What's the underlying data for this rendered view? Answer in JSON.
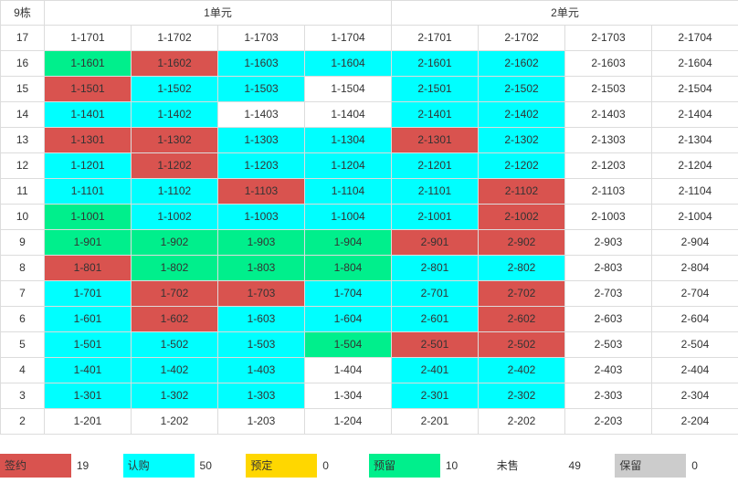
{
  "header": {
    "building": "9栋",
    "units": [
      "1单元",
      "2单元"
    ]
  },
  "status_colors": {
    "signed": "#d9534f",
    "subscribed": "#00ffff",
    "booked": "#ffd700",
    "reserved": "#00ef8c",
    "unsold": "#ffffff",
    "kept": "#cccccc"
  },
  "rows": [
    {
      "floor": "17",
      "cells": [
        {
          "label": "1-1701",
          "status": "unsold"
        },
        {
          "label": "1-1702",
          "status": "unsold"
        },
        {
          "label": "1-1703",
          "status": "unsold"
        },
        {
          "label": "1-1704",
          "status": "unsold"
        },
        {
          "label": "2-1701",
          "status": "unsold"
        },
        {
          "label": "2-1702",
          "status": "unsold"
        },
        {
          "label": "2-1703",
          "status": "unsold"
        },
        {
          "label": "2-1704",
          "status": "unsold"
        }
      ]
    },
    {
      "floor": "16",
      "cells": [
        {
          "label": "1-1601",
          "status": "reserved"
        },
        {
          "label": "1-1602",
          "status": "signed"
        },
        {
          "label": "1-1603",
          "status": "subscribed"
        },
        {
          "label": "1-1604",
          "status": "subscribed"
        },
        {
          "label": "2-1601",
          "status": "subscribed"
        },
        {
          "label": "2-1602",
          "status": "subscribed"
        },
        {
          "label": "2-1603",
          "status": "unsold"
        },
        {
          "label": "2-1604",
          "status": "unsold"
        }
      ]
    },
    {
      "floor": "15",
      "cells": [
        {
          "label": "1-1501",
          "status": "signed"
        },
        {
          "label": "1-1502",
          "status": "subscribed"
        },
        {
          "label": "1-1503",
          "status": "subscribed"
        },
        {
          "label": "1-1504",
          "status": "unsold"
        },
        {
          "label": "2-1501",
          "status": "subscribed"
        },
        {
          "label": "2-1502",
          "status": "subscribed"
        },
        {
          "label": "2-1503",
          "status": "unsold"
        },
        {
          "label": "2-1504",
          "status": "unsold"
        }
      ]
    },
    {
      "floor": "14",
      "cells": [
        {
          "label": "1-1401",
          "status": "subscribed"
        },
        {
          "label": "1-1402",
          "status": "subscribed"
        },
        {
          "label": "1-1403",
          "status": "unsold"
        },
        {
          "label": "1-1404",
          "status": "unsold"
        },
        {
          "label": "2-1401",
          "status": "subscribed"
        },
        {
          "label": "2-1402",
          "status": "subscribed"
        },
        {
          "label": "2-1403",
          "status": "unsold"
        },
        {
          "label": "2-1404",
          "status": "unsold"
        }
      ]
    },
    {
      "floor": "13",
      "cells": [
        {
          "label": "1-1301",
          "status": "signed"
        },
        {
          "label": "1-1302",
          "status": "signed"
        },
        {
          "label": "1-1303",
          "status": "subscribed"
        },
        {
          "label": "1-1304",
          "status": "subscribed"
        },
        {
          "label": "2-1301",
          "status": "signed"
        },
        {
          "label": "2-1302",
          "status": "subscribed"
        },
        {
          "label": "2-1303",
          "status": "unsold"
        },
        {
          "label": "2-1304",
          "status": "unsold"
        }
      ]
    },
    {
      "floor": "12",
      "cells": [
        {
          "label": "1-1201",
          "status": "subscribed"
        },
        {
          "label": "1-1202",
          "status": "signed"
        },
        {
          "label": "1-1203",
          "status": "subscribed"
        },
        {
          "label": "1-1204",
          "status": "subscribed"
        },
        {
          "label": "2-1201",
          "status": "subscribed"
        },
        {
          "label": "2-1202",
          "status": "subscribed"
        },
        {
          "label": "2-1203",
          "status": "unsold"
        },
        {
          "label": "2-1204",
          "status": "unsold"
        }
      ]
    },
    {
      "floor": "11",
      "cells": [
        {
          "label": "1-1101",
          "status": "subscribed"
        },
        {
          "label": "1-1102",
          "status": "subscribed"
        },
        {
          "label": "1-1103",
          "status": "signed"
        },
        {
          "label": "1-1104",
          "status": "subscribed"
        },
        {
          "label": "2-1101",
          "status": "subscribed"
        },
        {
          "label": "2-1102",
          "status": "signed"
        },
        {
          "label": "2-1103",
          "status": "unsold"
        },
        {
          "label": "2-1104",
          "status": "unsold"
        }
      ]
    },
    {
      "floor": "10",
      "cells": [
        {
          "label": "1-1001",
          "status": "reserved"
        },
        {
          "label": "1-1002",
          "status": "subscribed"
        },
        {
          "label": "1-1003",
          "status": "subscribed"
        },
        {
          "label": "1-1004",
          "status": "subscribed"
        },
        {
          "label": "2-1001",
          "status": "subscribed"
        },
        {
          "label": "2-1002",
          "status": "signed"
        },
        {
          "label": "2-1003",
          "status": "unsold"
        },
        {
          "label": "2-1004",
          "status": "unsold"
        }
      ]
    },
    {
      "floor": "9",
      "cells": [
        {
          "label": "1-901",
          "status": "reserved"
        },
        {
          "label": "1-902",
          "status": "reserved"
        },
        {
          "label": "1-903",
          "status": "reserved"
        },
        {
          "label": "1-904",
          "status": "reserved"
        },
        {
          "label": "2-901",
          "status": "signed"
        },
        {
          "label": "2-902",
          "status": "signed"
        },
        {
          "label": "2-903",
          "status": "unsold"
        },
        {
          "label": "2-904",
          "status": "unsold"
        }
      ]
    },
    {
      "floor": "8",
      "cells": [
        {
          "label": "1-801",
          "status": "signed"
        },
        {
          "label": "1-802",
          "status": "reserved"
        },
        {
          "label": "1-803",
          "status": "reserved"
        },
        {
          "label": "1-804",
          "status": "reserved"
        },
        {
          "label": "2-801",
          "status": "subscribed"
        },
        {
          "label": "2-802",
          "status": "subscribed"
        },
        {
          "label": "2-803",
          "status": "unsold"
        },
        {
          "label": "2-804",
          "status": "unsold"
        }
      ]
    },
    {
      "floor": "7",
      "cells": [
        {
          "label": "1-701",
          "status": "subscribed"
        },
        {
          "label": "1-702",
          "status": "signed"
        },
        {
          "label": "1-703",
          "status": "signed"
        },
        {
          "label": "1-704",
          "status": "subscribed"
        },
        {
          "label": "2-701",
          "status": "subscribed"
        },
        {
          "label": "2-702",
          "status": "signed"
        },
        {
          "label": "2-703",
          "status": "unsold"
        },
        {
          "label": "2-704",
          "status": "unsold"
        }
      ]
    },
    {
      "floor": "6",
      "cells": [
        {
          "label": "1-601",
          "status": "subscribed"
        },
        {
          "label": "1-602",
          "status": "signed"
        },
        {
          "label": "1-603",
          "status": "subscribed"
        },
        {
          "label": "1-604",
          "status": "subscribed"
        },
        {
          "label": "2-601",
          "status": "subscribed"
        },
        {
          "label": "2-602",
          "status": "signed"
        },
        {
          "label": "2-603",
          "status": "unsold"
        },
        {
          "label": "2-604",
          "status": "unsold"
        }
      ]
    },
    {
      "floor": "5",
      "cells": [
        {
          "label": "1-501",
          "status": "subscribed"
        },
        {
          "label": "1-502",
          "status": "subscribed"
        },
        {
          "label": "1-503",
          "status": "subscribed"
        },
        {
          "label": "1-504",
          "status": "reserved"
        },
        {
          "label": "2-501",
          "status": "signed"
        },
        {
          "label": "2-502",
          "status": "signed"
        },
        {
          "label": "2-503",
          "status": "unsold"
        },
        {
          "label": "2-504",
          "status": "unsold"
        }
      ]
    },
    {
      "floor": "4",
      "cells": [
        {
          "label": "1-401",
          "status": "subscribed"
        },
        {
          "label": "1-402",
          "status": "subscribed"
        },
        {
          "label": "1-403",
          "status": "subscribed"
        },
        {
          "label": "1-404",
          "status": "unsold"
        },
        {
          "label": "2-401",
          "status": "subscribed"
        },
        {
          "label": "2-402",
          "status": "subscribed"
        },
        {
          "label": "2-403",
          "status": "unsold"
        },
        {
          "label": "2-404",
          "status": "unsold"
        }
      ]
    },
    {
      "floor": "3",
      "cells": [
        {
          "label": "1-301",
          "status": "subscribed"
        },
        {
          "label": "1-302",
          "status": "subscribed"
        },
        {
          "label": "1-303",
          "status": "subscribed"
        },
        {
          "label": "1-304",
          "status": "unsold"
        },
        {
          "label": "2-301",
          "status": "subscribed"
        },
        {
          "label": "2-302",
          "status": "subscribed"
        },
        {
          "label": "2-303",
          "status": "unsold"
        },
        {
          "label": "2-304",
          "status": "unsold"
        }
      ]
    },
    {
      "floor": "2",
      "cells": [
        {
          "label": "1-201",
          "status": "unsold"
        },
        {
          "label": "1-202",
          "status": "unsold"
        },
        {
          "label": "1-203",
          "status": "unsold"
        },
        {
          "label": "1-204",
          "status": "unsold"
        },
        {
          "label": "2-201",
          "status": "unsold"
        },
        {
          "label": "2-202",
          "status": "unsold"
        },
        {
          "label": "2-203",
          "status": "unsold"
        },
        {
          "label": "2-204",
          "status": "unsold"
        }
      ]
    }
  ],
  "legend": [
    {
      "key": "signed",
      "label": "签约",
      "count": "19"
    },
    {
      "key": "subscribed",
      "label": "认购",
      "count": "50"
    },
    {
      "key": "booked",
      "label": "预定",
      "count": "0"
    },
    {
      "key": "reserved",
      "label": "预留",
      "count": "10"
    },
    {
      "key": "unsold",
      "label": "未售",
      "count": "49"
    },
    {
      "key": "kept",
      "label": "保留",
      "count": "0"
    }
  ]
}
